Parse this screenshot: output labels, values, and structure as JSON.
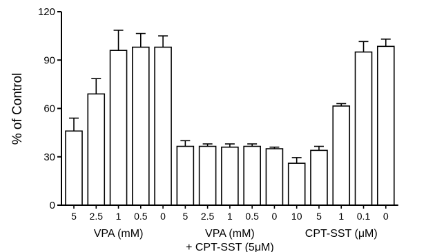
{
  "chart_data": {
    "type": "bar",
    "ylabel": "% of Control",
    "ylim": [
      0,
      120
    ],
    "yticks": [
      "0",
      "30",
      "60",
      "90",
      "120"
    ],
    "error_bars": "upper",
    "groups": [
      {
        "label_lines": [
          "VPA (mM)"
        ],
        "bars": [
          {
            "x": "5",
            "value": 46,
            "error": 8
          },
          {
            "x": "2.5",
            "value": 69,
            "error": 9.5
          },
          {
            "x": "1",
            "value": 96,
            "error": 12.5
          },
          {
            "x": "0.5",
            "value": 98,
            "error": 8.5
          },
          {
            "x": "0",
            "value": 98,
            "error": 7
          }
        ]
      },
      {
        "label_lines": [
          "VPA (mM)",
          "+ CPT-SST (5μM)"
        ],
        "bars": [
          {
            "x": "5",
            "value": 36.5,
            "error": 3.5
          },
          {
            "x": "2.5",
            "value": 36.5,
            "error": 1.5
          },
          {
            "x": "1",
            "value": 36,
            "error": 2
          },
          {
            "x": "0.5",
            "value": 36.5,
            "error": 1.5
          },
          {
            "x": "0",
            "value": 35,
            "error": 1
          }
        ]
      },
      {
        "label_lines": [
          "CPT-SST (μM)"
        ],
        "bars": [
          {
            "x": "10",
            "value": 26,
            "error": 3.5
          },
          {
            "x": "5",
            "value": 34,
            "error": 2.5
          },
          {
            "x": "1",
            "value": 61.5,
            "error": 1.5
          },
          {
            "x": "0.1",
            "value": 95,
            "error": 6.5
          },
          {
            "x": "0",
            "value": 98.5,
            "error": 4.5
          }
        ]
      }
    ]
  }
}
